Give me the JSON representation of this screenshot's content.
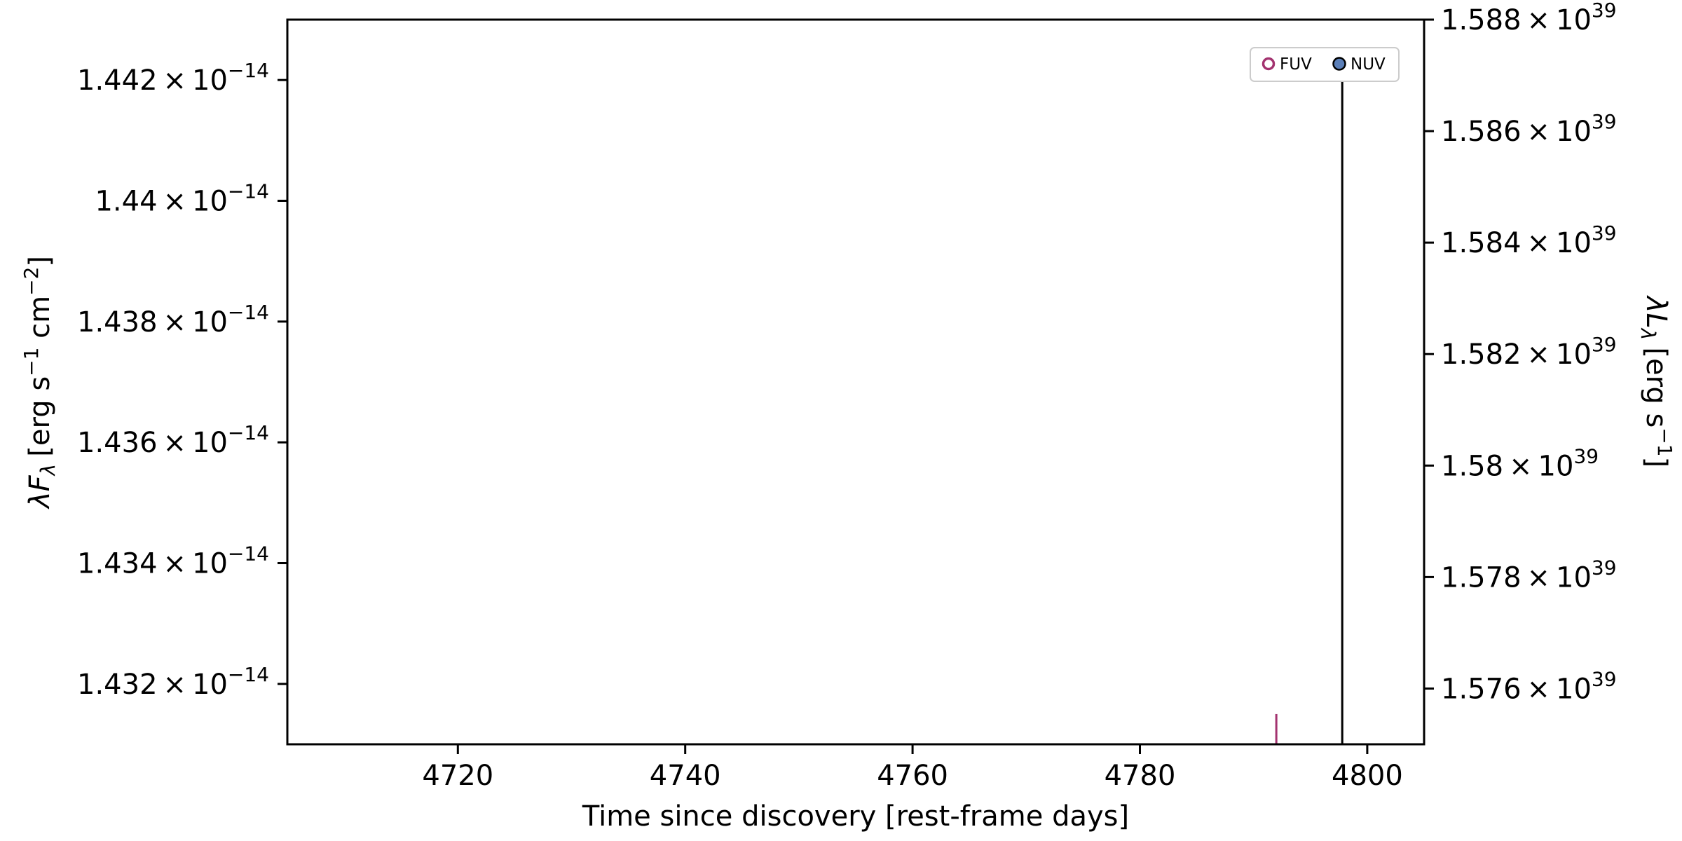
{
  "chart_data": {
    "type": "scatter",
    "xlabel": "Time since discovery [rest-frame days]",
    "ylabel_left": {
      "prefix": "λF",
      "sub": "λ",
      "text": "[erg s",
      "sup1": "−1",
      "mid": " cm",
      "sup2": "−2",
      "end": "]"
    },
    "ylabel_right": {
      "prefix": "λL",
      "sub": "λ",
      "text": "[erg s",
      "sup1": "−1",
      "end": "]"
    },
    "xlim": [
      4705,
      4805
    ],
    "ylim_left": [
      1.431e-14,
      1.443e-14
    ],
    "ylim_right": [
      1.575e+39,
      1.588e+39
    ],
    "x_ticks": [
      4720,
      4740,
      4760,
      4780,
      4800
    ],
    "x_tick_labels": [
      "4720",
      "4740",
      "4760",
      "4780",
      "4800"
    ],
    "y_ticks_left": [
      {
        "value": 1.432e-14,
        "mant": "1.432",
        "exp": "−14"
      },
      {
        "value": 1.434e-14,
        "mant": "1.434",
        "exp": "−14"
      },
      {
        "value": 1.436e-14,
        "mant": "1.436",
        "exp": "−14"
      },
      {
        "value": 1.438e-14,
        "mant": "1.438",
        "exp": "−14"
      },
      {
        "value": 1.44e-14,
        "mant": "1.44",
        "exp": "−14"
      },
      {
        "value": 1.442e-14,
        "mant": "1.442",
        "exp": "−14"
      }
    ],
    "y_ticks_right": [
      {
        "value": 1.576e+39,
        "mant": "1.576",
        "exp": "39"
      },
      {
        "value": 1.578e+39,
        "mant": "1.578",
        "exp": "39"
      },
      {
        "value": 1.58e+39,
        "mant": "1.58",
        "exp": "39"
      },
      {
        "value": 1.582e+39,
        "mant": "1.582",
        "exp": "39"
      },
      {
        "value": 1.584e+39,
        "mant": "1.584",
        "exp": "39"
      },
      {
        "value": 1.586e+39,
        "mant": "1.586",
        "exp": "39"
      },
      {
        "value": 1.588e+39,
        "mant": "1.588",
        "exp": "39"
      }
    ],
    "series": [
      {
        "name": "FUV",
        "marker": "open-circle",
        "color": "#a3326f",
        "points": [
          {
            "x": 4792.0,
            "y_low": 1.43e-14,
            "y_high": 1.4315e-14
          }
        ]
      },
      {
        "name": "NUV",
        "marker": "filled-circle",
        "color": "#5b7fb8",
        "edge": "#000000",
        "points": [
          {
            "x": 4797.8,
            "y_low": 1.43e-14,
            "y_high": 1.442e-14
          }
        ]
      }
    ],
    "legend": {
      "placement": "top-right",
      "entries": [
        "FUV",
        "NUV"
      ]
    },
    "grid": false
  }
}
